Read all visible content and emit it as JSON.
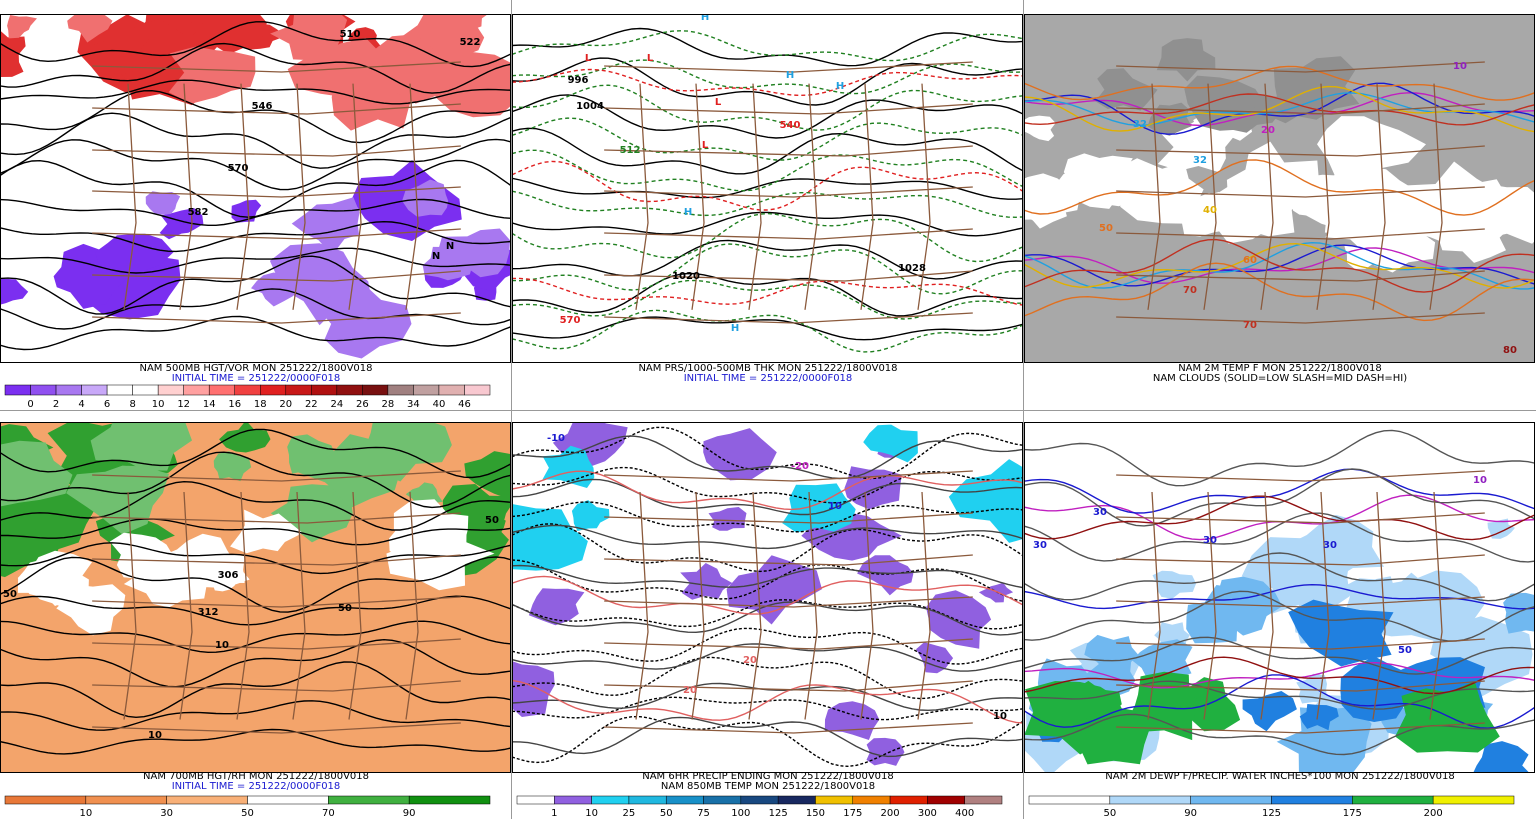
{
  "panels": [
    {
      "captions": [
        {
          "text": "NAM 500MB HGT/VOR MON 251222/1800V018",
          "color": "#000000"
        },
        {
          "text": "INITIAL TIME = 251222/0000F018",
          "color": "#1a1ad0"
        }
      ],
      "colorbar": {
        "labels": [
          "0",
          "2",
          "4",
          "6",
          "8",
          "10",
          "12",
          "14",
          "16",
          "18",
          "20",
          "22",
          "24",
          "26",
          "28",
          "34",
          "40",
          "46"
        ],
        "colors": [
          "#7b2ff0",
          "#9050f0",
          "#a878f0",
          "#c8a8f8",
          "#ffffff",
          "#ffffff",
          "#ffd0d0",
          "#ffa0a0",
          "#ff7070",
          "#f04040",
          "#e02020",
          "#c81818",
          "#b01010",
          "#901010",
          "#781010",
          "#a08080",
          "#c0a0a0",
          "#e0b0b0",
          "#f8c8d0"
        ]
      },
      "map_labels": [
        {
          "text": "510",
          "color": "#000000"
        },
        {
          "text": "522",
          "color": "#000000"
        },
        {
          "text": "546",
          "color": "#000000"
        },
        {
          "text": "570",
          "color": "#000000"
        },
        {
          "text": "582",
          "color": "#000000"
        },
        {
          "text": "N",
          "color": "#000000"
        },
        {
          "text": "N",
          "color": "#000000"
        }
      ]
    },
    {
      "captions": [
        {
          "text": "NAM PRS/1000-500MB THK MON 251222/1800V018",
          "color": "#000000"
        },
        {
          "text": "INITIAL TIME = 251222/0000F018",
          "color": "#1a1ad0"
        }
      ],
      "map_labels": [
        {
          "text": "L",
          "color": "#e02020"
        },
        {
          "text": "L",
          "color": "#e02020"
        },
        {
          "text": "L",
          "color": "#e02020"
        },
        {
          "text": "L",
          "color": "#e02020"
        },
        {
          "text": "H",
          "color": "#20a0e0"
        },
        {
          "text": "H",
          "color": "#20a0e0"
        },
        {
          "text": "H",
          "color": "#20a0e0"
        },
        {
          "text": "H",
          "color": "#20a0e0"
        },
        {
          "text": "H",
          "color": "#20a0e0"
        },
        {
          "text": "996",
          "color": "#000000"
        },
        {
          "text": "1004",
          "color": "#000000"
        },
        {
          "text": "1020",
          "color": "#000000"
        },
        {
          "text": "1028",
          "color": "#000000"
        },
        {
          "text": "570",
          "color": "#e02020"
        },
        {
          "text": "540",
          "color": "#e02020"
        },
        {
          "text": "512",
          "color": "#208020"
        }
      ]
    },
    {
      "captions": [
        {
          "text": "NAM 2M TEMP F MON 251222/1800V018",
          "color": "#000000"
        },
        {
          "text": "NAM CLOUDS (SOLID=LOW SLASH=MID DASH=HI)",
          "color": "#000000"
        }
      ],
      "map_labels": [
        {
          "text": "32",
          "color": "#20a0e0"
        },
        {
          "text": "32",
          "color": "#20a0e0"
        },
        {
          "text": "20",
          "color": "#c020c0"
        },
        {
          "text": "40",
          "color": "#e0b000"
        },
        {
          "text": "50",
          "color": "#e07020"
        },
        {
          "text": "60",
          "color": "#e07020"
        },
        {
          "text": "70",
          "color": "#c03020"
        },
        {
          "text": "70",
          "color": "#c03020"
        },
        {
          "text": "80",
          "color": "#901010"
        },
        {
          "text": "10",
          "color": "#9020c0"
        }
      ]
    },
    {
      "captions": [
        {
          "text": "NAM 700MB HGT/RH MON 251222/1800V018",
          "color": "#000000"
        },
        {
          "text": "INITIAL TIME = 251222/0000F018",
          "color": "#1a1ad0"
        }
      ],
      "colorbar": {
        "labels": [
          "10",
          "30",
          "50",
          "70",
          "90"
        ],
        "colors": [
          "#e87838",
          "#f09050",
          "#f8b078",
          "#ffffff",
          "#40b040",
          "#109010"
        ]
      },
      "map_labels": [
        {
          "text": "50",
          "color": "#000000"
        },
        {
          "text": "10",
          "color": "#000000"
        },
        {
          "text": "10",
          "color": "#000000"
        },
        {
          "text": "306",
          "color": "#000000"
        },
        {
          "text": "312",
          "color": "#000000"
        },
        {
          "text": "50",
          "color": "#000000"
        },
        {
          "text": "50",
          "color": "#000000"
        }
      ]
    },
    {
      "captions": [
        {
          "text": "NAM 6HR PRECIP ENDING MON 251222/1800V018",
          "color": "#000000"
        },
        {
          "text": "NAM 850MB TEMP MON 251222/1800V018",
          "color": "#000000"
        }
      ],
      "colorbar": {
        "labels": [
          "1",
          "10",
          "25",
          "50",
          "75",
          "100",
          "125",
          "150",
          "175",
          "200",
          "300",
          "400"
        ],
        "colors": [
          "#ffffff",
          "#9060e0",
          "#20d0f0",
          "#20b8e0",
          "#1890c8",
          "#1870a8",
          "#184880",
          "#182860",
          "#f0c000",
          "#f08000",
          "#e02000",
          "#a00000",
          "#b08080"
        ]
      },
      "map_labels": [
        {
          "text": "-10",
          "color": "#1a1ad0"
        },
        {
          "text": "-20",
          "color": "#c020c0"
        },
        {
          "text": "10",
          "color": "#1a1ad0"
        },
        {
          "text": "20",
          "color": "#e06060"
        },
        {
          "text": "20",
          "color": "#e06060"
        },
        {
          "text": "10",
          "color": "#000000"
        }
      ]
    },
    {
      "captions": [
        {
          "text": "NAM 2M DEWP F/PRECIP. WATER INCHES*100 MON 251222/1800V018",
          "color": "#000000"
        }
      ],
      "colorbar": {
        "labels": [
          "50",
          "90",
          "125",
          "175",
          "200"
        ],
        "colors": [
          "#ffffff",
          "#b0d8f8",
          "#70b8f0",
          "#2080e0",
          "#20b040",
          "#f0f000"
        ]
      },
      "map_labels": [
        {
          "text": "30",
          "color": "#1a1ad0"
        },
        {
          "text": "30",
          "color": "#1a1ad0"
        },
        {
          "text": "30",
          "color": "#1a1ad0"
        },
        {
          "text": "50",
          "color": "#1a1ad0"
        },
        {
          "text": "10",
          "color": "#9020c0"
        },
        {
          "text": "30",
          "color": "#1a1ad0"
        }
      ]
    }
  ]
}
